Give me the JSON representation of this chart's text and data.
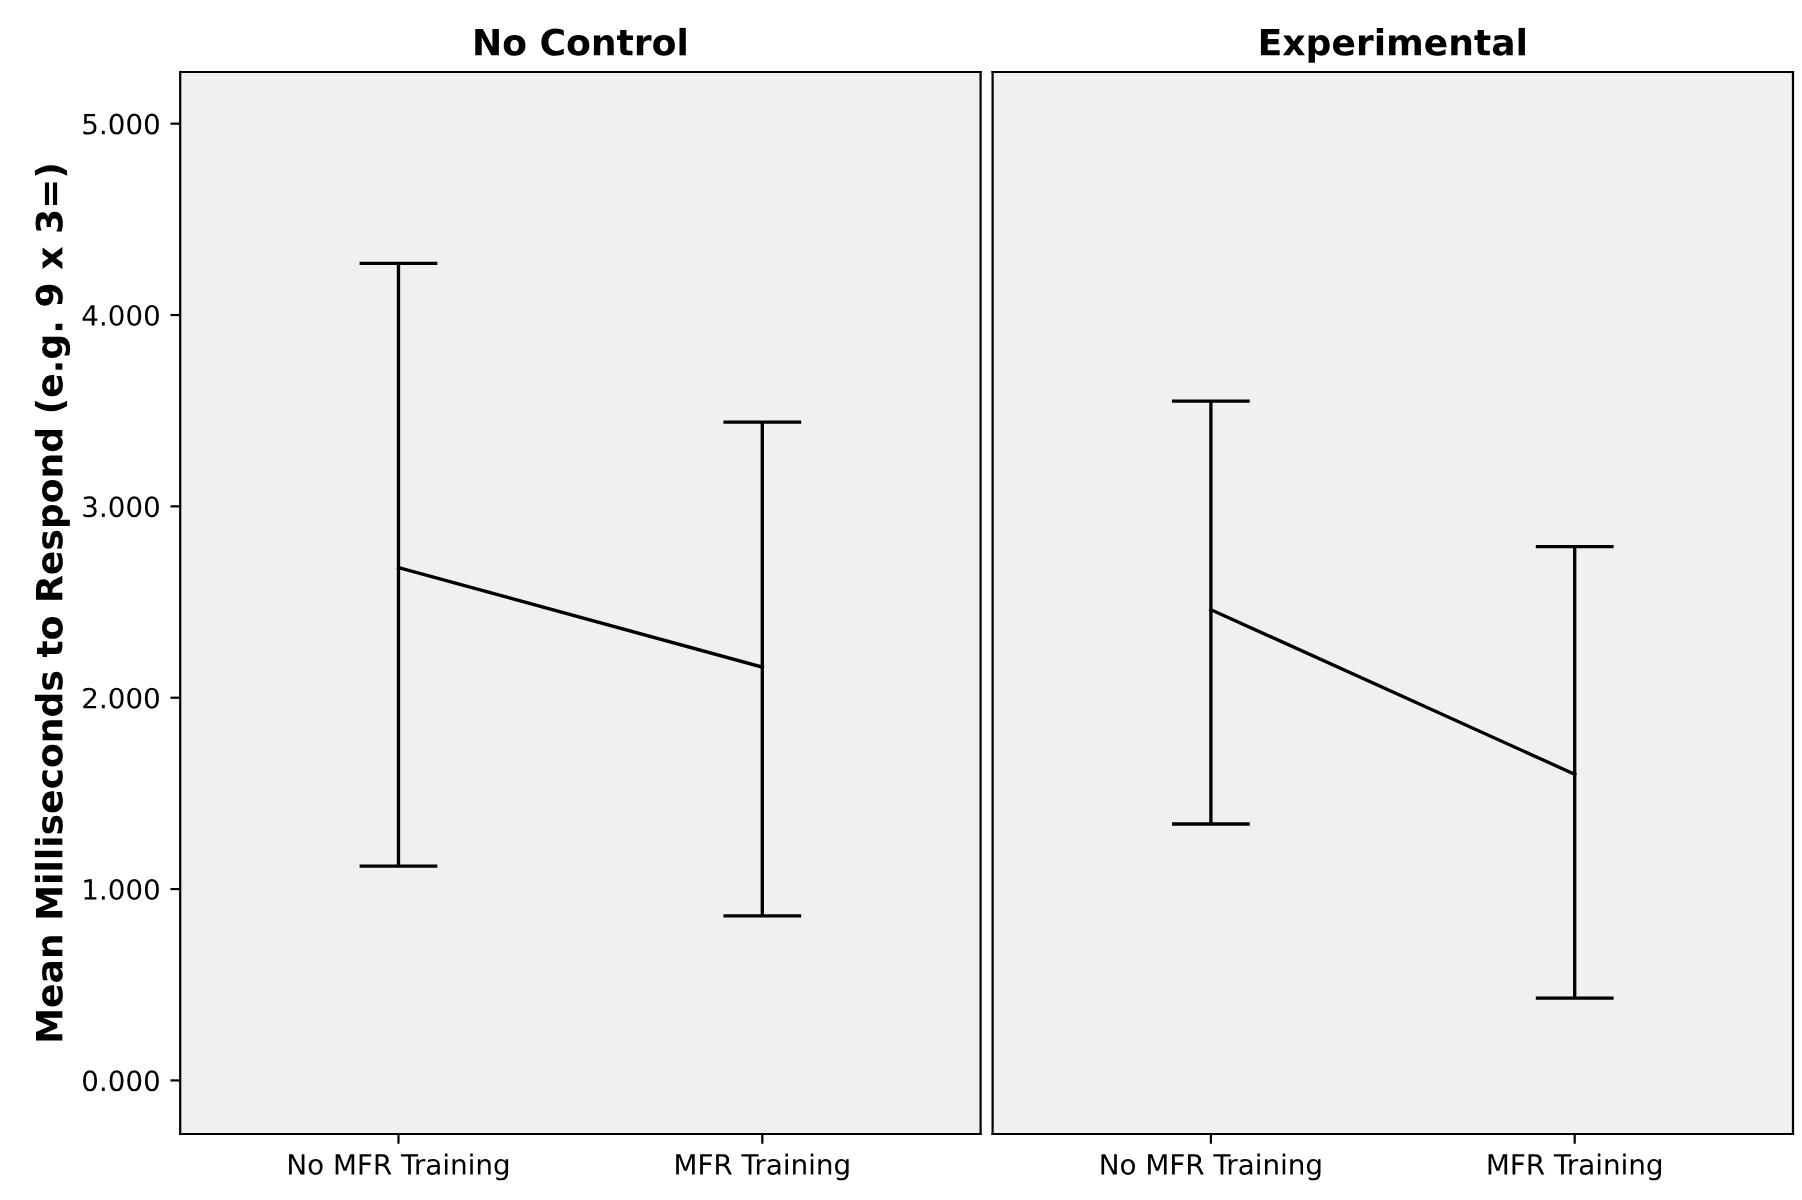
{
  "chart_data": [
    {
      "type": "line",
      "title": "No Control",
      "ylabel": "Mean Milliseconds to Respond (e.g. 9 x 3=)",
      "categories": [
        "No MFR Training",
        "MFR Training"
      ],
      "series": [
        {
          "color": "#000000",
          "values": [
            2.68,
            2.16
          ],
          "errors": [
            [
              1.12,
              4.27
            ],
            [
              0.86,
              3.44
            ]
          ]
        }
      ],
      "ylim": [
        -0.28,
        5.27
      ],
      "yticks": [
        {
          "value": 0,
          "label": "0.000"
        },
        {
          "value": 1,
          "label": "1.000"
        },
        {
          "value": 2,
          "label": "2.000"
        },
        {
          "value": 3,
          "label": "3.000"
        },
        {
          "value": 4,
          "label": "4.000"
        },
        {
          "value": 5,
          "label": "5.000"
        }
      ],
      "grid": false,
      "legend": false,
      "marker": "none",
      "line_style": "solid"
    },
    {
      "type": "line",
      "title": "Experimental",
      "categories": [
        "No MFR Training",
        "MFR Training"
      ],
      "series": [
        {
          "color": "#000000",
          "values": [
            2.46,
            1.6
          ],
          "errors": [
            [
              1.34,
              3.55
            ],
            [
              0.43,
              2.79
            ]
          ]
        }
      ],
      "ylim": [
        -0.28,
        5.27
      ],
      "tick_labels": "x",
      "grid": false,
      "legend": false,
      "marker": "none",
      "line_style": "solid"
    }
  ]
}
